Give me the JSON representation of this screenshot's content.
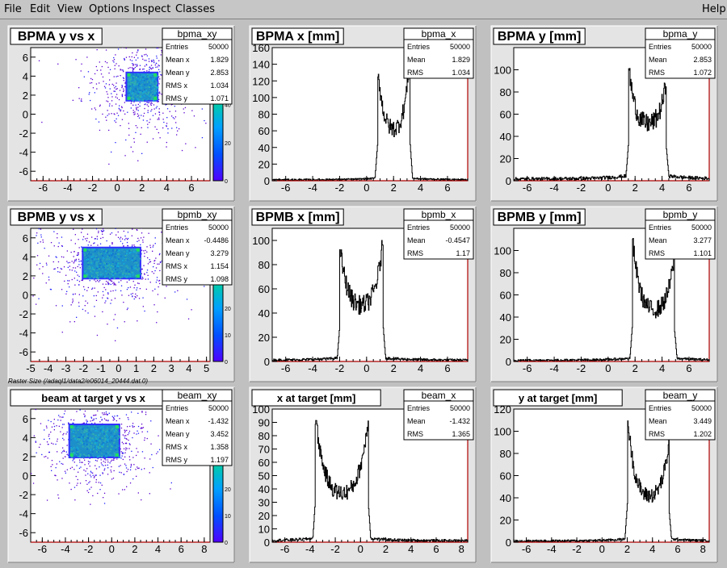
{
  "menu": {
    "items": [
      "File",
      "Edit",
      "View",
      "Options",
      "Inspect",
      "Classes"
    ],
    "help": "Help"
  },
  "caption": "Raster Size (/adaql1/data2/e06014_20444.dat.0)",
  "pads": [
    {
      "id": "bpma_xy",
      "title": "BPMA y vs x",
      "type": "hist2d",
      "xticks": [
        -6,
        -4,
        -2,
        0,
        2,
        4,
        6
      ],
      "xlim": [
        -7,
        7.5
      ],
      "ylim": [
        -7,
        7
      ],
      "yticks": [
        -6,
        -4,
        -2,
        0,
        2,
        4,
        6
      ],
      "zticks": [
        0,
        20,
        40,
        60
      ],
      "zmax": 70,
      "stats": {
        "name": "bpma_xy",
        "rows": [
          [
            "Entries",
            "50000"
          ],
          [
            "Mean x",
            "1.829"
          ],
          [
            "Mean y",
            "2.853"
          ],
          [
            "RMS x",
            "1.034"
          ],
          [
            "RMS y",
            "1.071"
          ]
        ]
      },
      "region": {
        "x0": 0.8,
        "x1": 3.2,
        "y0": 1.5,
        "y1": 4.3
      }
    },
    {
      "id": "bpma_x",
      "title": "BPMA x [mm]",
      "type": "hist1d",
      "xticks": [
        -6,
        -4,
        -2,
        0,
        2,
        4,
        6
      ],
      "xlim": [
        -7,
        7.5
      ],
      "ylim": [
        0,
        160
      ],
      "yticks": [
        0,
        20,
        40,
        60,
        80,
        100,
        120,
        140,
        160
      ],
      "stats": {
        "name": "bpma_x",
        "rows": [
          [
            "Entries",
            "50000"
          ],
          [
            "Mean",
            "1.829"
          ],
          [
            "RMS",
            "1.034"
          ]
        ]
      },
      "chart_data": {
        "type": "line",
        "edges": [
          0.8,
          3.2
        ],
        "peak_low": 140,
        "peak_high": 155,
        "valley": 60,
        "background": 2
      }
    },
    {
      "id": "bpma_y",
      "title": "BPMA y [mm]",
      "type": "hist1d",
      "xticks": [
        -6,
        -4,
        -2,
        0,
        2,
        4,
        6
      ],
      "xlim": [
        -7,
        7.5
      ],
      "ylim": [
        0,
        120
      ],
      "yticks": [
        0,
        20,
        40,
        60,
        80,
        100
      ],
      "stats": {
        "name": "bpma_y",
        "rows": [
          [
            "Entries",
            "50000"
          ],
          [
            "Mean",
            "2.853"
          ],
          [
            "RMS",
            "1.072"
          ]
        ]
      },
      "chart_data": {
        "type": "line",
        "edges": [
          1.5,
          4.3
        ],
        "peak_low": 105,
        "peak_high": 90,
        "valley": 50,
        "background": 3
      }
    },
    {
      "id": "bpmb_xy",
      "title": "BPMB y vs x",
      "type": "hist2d",
      "xticks": [
        -5,
        -4,
        -3,
        -2,
        -1,
        0,
        1,
        2,
        3,
        4,
        5
      ],
      "xlim": [
        -5,
        5.2
      ],
      "ylim": [
        -7,
        7
      ],
      "yticks": [
        -6,
        -4,
        -2,
        0,
        2,
        4,
        6
      ],
      "zticks": [
        0,
        10,
        20,
        30,
        40
      ],
      "zmax": 50,
      "stats": {
        "name": "bpmb_xy",
        "rows": [
          [
            "Entries",
            "50000"
          ],
          [
            "Mean x",
            "-0.4486"
          ],
          [
            "Mean y",
            "3.279"
          ],
          [
            "RMS x",
            "1.154"
          ],
          [
            "RMS y",
            "1.098"
          ]
        ]
      },
      "region": {
        "x0": -2.0,
        "x1": 1.2,
        "y0": 1.8,
        "y1": 4.9
      }
    },
    {
      "id": "bpmb_x",
      "title": "BPMB x [mm]",
      "type": "hist1d",
      "xticks": [
        -6,
        -4,
        -2,
        0,
        2,
        4,
        6
      ],
      "xlim": [
        -7,
        7.5
      ],
      "ylim": [
        0,
        110
      ],
      "yticks": [
        0,
        20,
        40,
        60,
        80,
        100
      ],
      "stats": {
        "name": "bpmb_x",
        "rows": [
          [
            "Entries",
            "50000"
          ],
          [
            "Mean",
            "-0.4547"
          ],
          [
            "RMS",
            "1.17"
          ]
        ]
      },
      "chart_data": {
        "type": "line",
        "edges": [
          -2.0,
          1.2
        ],
        "peak_low": 95,
        "peak_high": 100,
        "valley": 45,
        "background": 2
      }
    },
    {
      "id": "bpmb_y",
      "title": "BPMB y [mm]",
      "type": "hist1d",
      "xticks": [
        -6,
        -4,
        -2,
        0,
        2,
        4,
        6
      ],
      "xlim": [
        -7,
        7.5
      ],
      "ylim": [
        0,
        120
      ],
      "yticks": [
        0,
        20,
        40,
        60,
        80,
        100
      ],
      "stats": {
        "name": "bpmb_y",
        "rows": [
          [
            "Entries",
            "50000"
          ],
          [
            "Mean",
            "3.277"
          ],
          [
            "RMS",
            "1.101"
          ]
        ]
      },
      "chart_data": {
        "type": "line",
        "edges": [
          1.8,
          4.9
        ],
        "peak_low": 110,
        "peak_high": 95,
        "valley": 45,
        "background": 2
      }
    },
    {
      "id": "beam_xy",
      "title": "beam at target y vs x",
      "type": "hist2d",
      "xticks": [
        -6,
        -4,
        -2,
        0,
        2,
        4,
        6,
        8
      ],
      "xlim": [
        -7,
        8.5
      ],
      "ylim": [
        -7,
        7
      ],
      "yticks": [
        -6,
        -4,
        -2,
        0,
        2,
        4,
        6
      ],
      "zticks": [
        0,
        10,
        20,
        30,
        40
      ],
      "zmax": 50,
      "stats": {
        "name": "beam_xy",
        "rows": [
          [
            "Entries",
            "50000"
          ],
          [
            "Mean x",
            "-1.432"
          ],
          [
            "Mean y",
            "3.452"
          ],
          [
            "RMS x",
            "1.358"
          ],
          [
            "RMS y",
            "1.197"
          ]
        ]
      },
      "region": {
        "x0": -3.6,
        "x1": 0.6,
        "y0": 2.0,
        "y1": 5.3
      }
    },
    {
      "id": "beam_x",
      "title": "x at target [mm]",
      "type": "hist1d",
      "xticks": [
        -6,
        -4,
        -2,
        0,
        2,
        4,
        6,
        8
      ],
      "xlim": [
        -7,
        8.5
      ],
      "ylim": [
        0,
        100
      ],
      "yticks": [
        0,
        10,
        20,
        30,
        40,
        50,
        60,
        70,
        80,
        90,
        100
      ],
      "stats": {
        "name": "beam_x",
        "rows": [
          [
            "Entries",
            "50000"
          ],
          [
            "Mean",
            "-1.432"
          ],
          [
            "RMS",
            "1.365"
          ]
        ]
      },
      "chart_data": {
        "type": "line",
        "edges": [
          -3.6,
          0.6
        ],
        "peak_low": 95,
        "peak_high": 93,
        "valley": 35,
        "background": 2
      }
    },
    {
      "id": "beam_y",
      "title": "y at target [mm]",
      "type": "hist1d",
      "xticks": [
        -6,
        -4,
        -2,
        0,
        2,
        4,
        6,
        8
      ],
      "xlim": [
        -7,
        8.5
      ],
      "ylim": [
        0,
        120
      ],
      "yticks": [
        0,
        20,
        40,
        60,
        80,
        100,
        120
      ],
      "stats": {
        "name": "beam_y",
        "rows": [
          [
            "Entries",
            "50000"
          ],
          [
            "Mean",
            "3.449"
          ],
          [
            "RMS",
            "1.202"
          ]
        ]
      },
      "chart_data": {
        "type": "line",
        "edges": [
          2.0,
          5.3
        ],
        "peak_low": 115,
        "peak_high": 90,
        "valley": 40,
        "background": 2
      }
    }
  ]
}
